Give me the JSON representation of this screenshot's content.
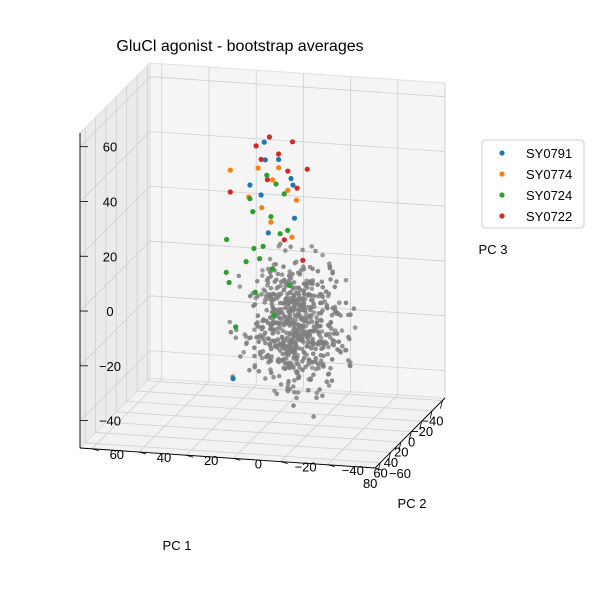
{
  "chart_data": {
    "type": "scatter",
    "title": "GluCl agonist - bootstrap averages",
    "xlabel": "PC 1",
    "ylabel": "PC 2",
    "zlabel": "PC 3",
    "xlim": [
      -45,
      90
    ],
    "ylim": [
      -60,
      65
    ],
    "zlim": [
      -50,
      65
    ],
    "xticks": [
      -40,
      -20,
      0,
      20,
      40,
      60,
      80
    ],
    "yticks": [
      -60,
      -40,
      -20,
      0,
      20,
      40,
      60
    ],
    "zticks": [
      -40,
      -20,
      0,
      20,
      40,
      60
    ],
    "grid": true,
    "legend_position": "right",
    "colors": {
      "SY0791": "#1f77b4",
      "SY0774": "#ff7f0e",
      "SY0724": "#2ca02c",
      "SY0722": "#d62728",
      "background": "#7f7f7f"
    },
    "series": [
      {
        "name": "SY0791",
        "points": [
          [
            -15,
            10,
            45
          ],
          [
            -20,
            5,
            38
          ],
          [
            -10,
            15,
            30
          ],
          [
            -5,
            -5,
            20
          ],
          [
            -18,
            12,
            25
          ],
          [
            0,
            5,
            15
          ],
          [
            -12,
            -2,
            33
          ],
          [
            -8,
            8,
            40
          ],
          [
            45,
            10,
            -30
          ],
          [
            -25,
            0,
            28
          ]
        ]
      },
      {
        "name": "SY0774",
        "points": [
          [
            -20,
            5,
            35
          ],
          [
            -15,
            0,
            28
          ],
          [
            -10,
            10,
            22
          ],
          [
            -22,
            8,
            30
          ],
          [
            -5,
            5,
            18
          ],
          [
            -18,
            -3,
            24
          ],
          [
            -12,
            12,
            36
          ],
          [
            0,
            -5,
            14
          ],
          [
            -8,
            15,
            26
          ],
          [
            5,
            20,
            38
          ]
        ]
      },
      {
        "name": "SY0724",
        "points": [
          [
            -5,
            5,
            20
          ],
          [
            0,
            0,
            15
          ],
          [
            5,
            10,
            10
          ],
          [
            10,
            5,
            12
          ],
          [
            -10,
            15,
            25
          ],
          [
            15,
            0,
            5
          ],
          [
            20,
            10,
            8
          ],
          [
            -15,
            5,
            30
          ],
          [
            25,
            5,
            -2
          ],
          [
            30,
            15,
            2
          ],
          [
            8,
            -5,
            18
          ],
          [
            -2,
            12,
            22
          ],
          [
            35,
            -5,
            -8
          ],
          [
            12,
            20,
            14
          ],
          [
            -20,
            10,
            32
          ],
          [
            3,
            8,
            6
          ],
          [
            18,
            -8,
            0
          ],
          [
            40,
            10,
            -12
          ],
          [
            -8,
            0,
            28
          ],
          [
            22,
            18,
            4
          ]
        ]
      },
      {
        "name": "SY0722",
        "points": [
          [
            -25,
            10,
            45
          ],
          [
            -20,
            5,
            40
          ],
          [
            -22,
            15,
            42
          ],
          [
            -15,
            0,
            35
          ],
          [
            -18,
            12,
            38
          ],
          [
            -10,
            -5,
            30
          ],
          [
            5,
            20,
            30
          ],
          [
            60,
            -15,
            25
          ],
          [
            70,
            -25,
            20
          ],
          [
            -24,
            0,
            44
          ],
          [
            -12,
            8,
            32
          ],
          [
            -16,
            -8,
            36
          ]
        ]
      }
    ]
  }
}
